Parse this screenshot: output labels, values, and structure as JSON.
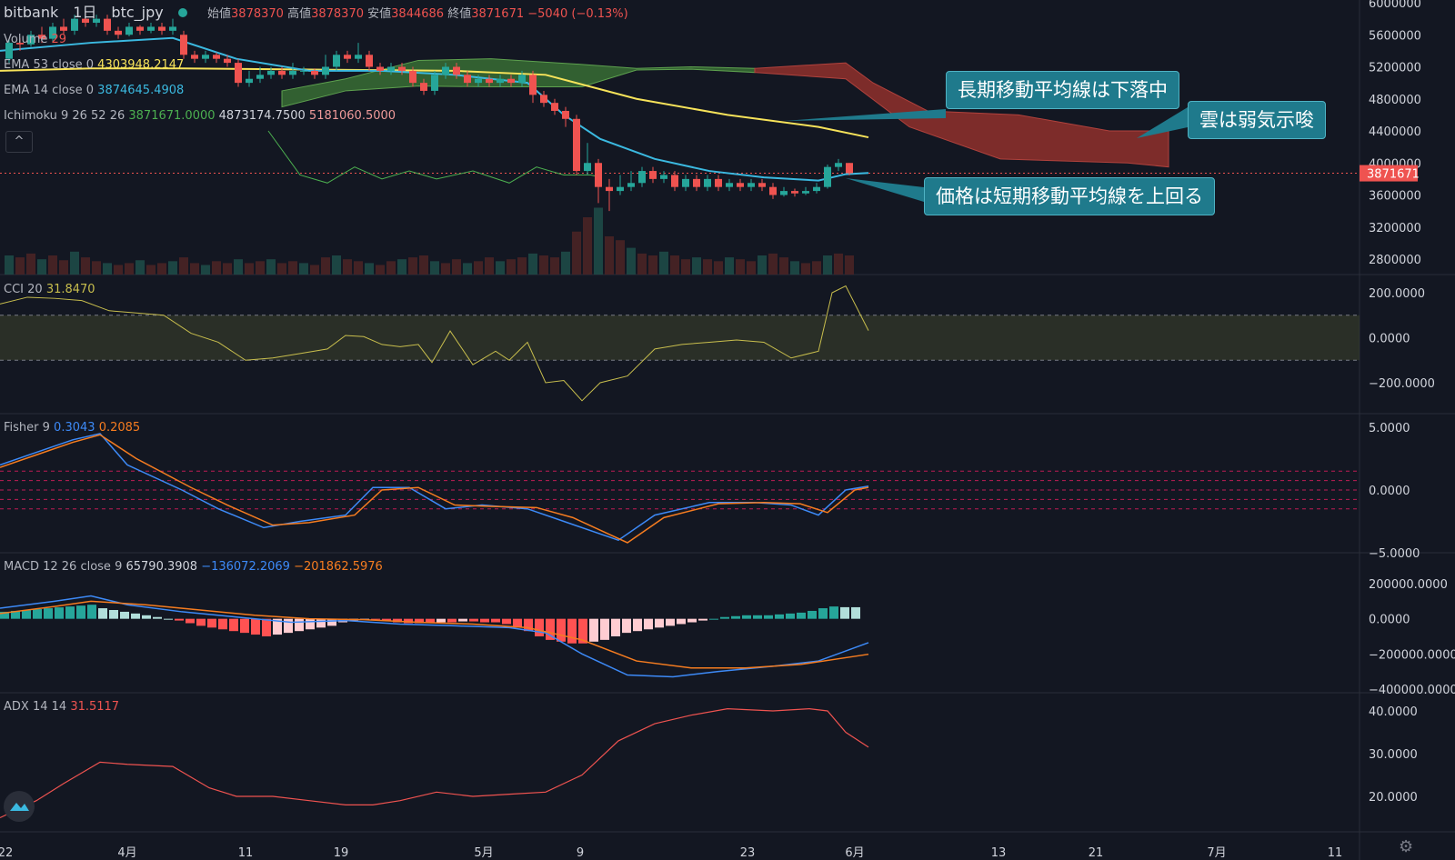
{
  "header": {
    "symbol": "bitbank　1日　btc_jpy",
    "open_label": "始値",
    "open_value": "3878370",
    "high_label": "高値",
    "high_value": "3878370",
    "low_label": "安値",
    "low_value": "3844686",
    "close_label": "終値",
    "close_value": "3871671",
    "change": "−5040 (−0.13%)"
  },
  "legend": {
    "volume_name": "Volume",
    "volume_value": "29",
    "ema53_name": "EMA 53 close 0",
    "ema53_value": "4303948.2147",
    "ema14_name": "EMA 14 close 0",
    "ema14_value": "3874645.4908",
    "ichimoku_name": "Ichimoku 9 26 52 26",
    "ichimoku_v1": "3871671.0000",
    "ichimoku_v2": "4873174.7500",
    "ichimoku_v3": "5181060.5000",
    "toggle_label": "^"
  },
  "indicators": {
    "cci": {
      "name": "CCI 20",
      "value": "31.8470"
    },
    "fisher": {
      "name": "Fisher 9",
      "value1": "0.3043",
      "value2": "0.2085"
    },
    "macd": {
      "name": "MACD 12 26 close 9",
      "value1": "65790.3908",
      "value2": "−136072.2069",
      "value3": "−201862.5976"
    },
    "adx": {
      "name": "ADX 14 14",
      "value": "31.5117"
    }
  },
  "price_axis": {
    "ticks": [
      "6000000",
      "5600000",
      "5200000",
      "4800000",
      "4400000",
      "4000000",
      "3600000",
      "3200000",
      "2800000"
    ],
    "last_price_label": "3871671"
  },
  "cci_axis": {
    "ticks": [
      "200.0000",
      "0.0000",
      "−200.0000"
    ]
  },
  "fisher_axis": {
    "ticks": [
      "5.0000",
      "0.0000",
      "−5.0000"
    ]
  },
  "macd_axis": {
    "ticks": [
      "200000.0000",
      "0.0000",
      "−200000.0000",
      "−400000.0000"
    ]
  },
  "adx_axis": {
    "ticks": [
      "40.0000",
      "30.0000",
      "20.0000"
    ]
  },
  "time_axis": {
    "labels": [
      "22",
      "4月",
      "11",
      "19",
      "5月",
      "9",
      "23",
      "6月",
      "13",
      "21",
      "7月",
      "11"
    ]
  },
  "annotations": {
    "callout1": "長期移動平均線は下落中",
    "callout2": "雲は弱気示唆",
    "callout3": "価格は短期移動平均線を上回る"
  },
  "colors": {
    "up": "#26a69a",
    "down": "#ef5350",
    "ema53": "#f7e35a",
    "ema14": "#3bb9e0",
    "cloud_bull": "#3d7a37",
    "cloud_bear": "#8a2f2b",
    "cci": "#c8be4d",
    "fisher1": "#3d8af7",
    "fisher2": "#f57c20",
    "adx": "#ef5350",
    "callout": "#1f7a8c"
  },
  "chart_data": {
    "type": "line",
    "title": "bitbank 1日 btc_jpy",
    "x": [
      "22",
      "4月",
      "11",
      "19",
      "5月",
      "9",
      "23",
      "6月"
    ],
    "series": [
      {
        "name": "EMA 14 close 0",
        "values": [
          5400000,
          5550000,
          5200000,
          5100000,
          5050000,
          4300000,
          3850000,
          3874645
        ]
      },
      {
        "name": "EMA 53 close 0",
        "values": [
          5150000,
          5180000,
          5180000,
          5160000,
          5120000,
          4750000,
          4450000,
          4303948
        ]
      },
      {
        "name": "CCI 20",
        "values": [
          150,
          160,
          -100,
          20,
          -20,
          -220,
          -30,
          31.847
        ]
      },
      {
        "name": "ADX 14 14",
        "values": [
          17,
          28,
          20,
          17,
          20,
          30,
          40,
          31.5117
        ]
      }
    ],
    "ylim": [
      2800000,
      6000000
    ],
    "grid": false
  }
}
